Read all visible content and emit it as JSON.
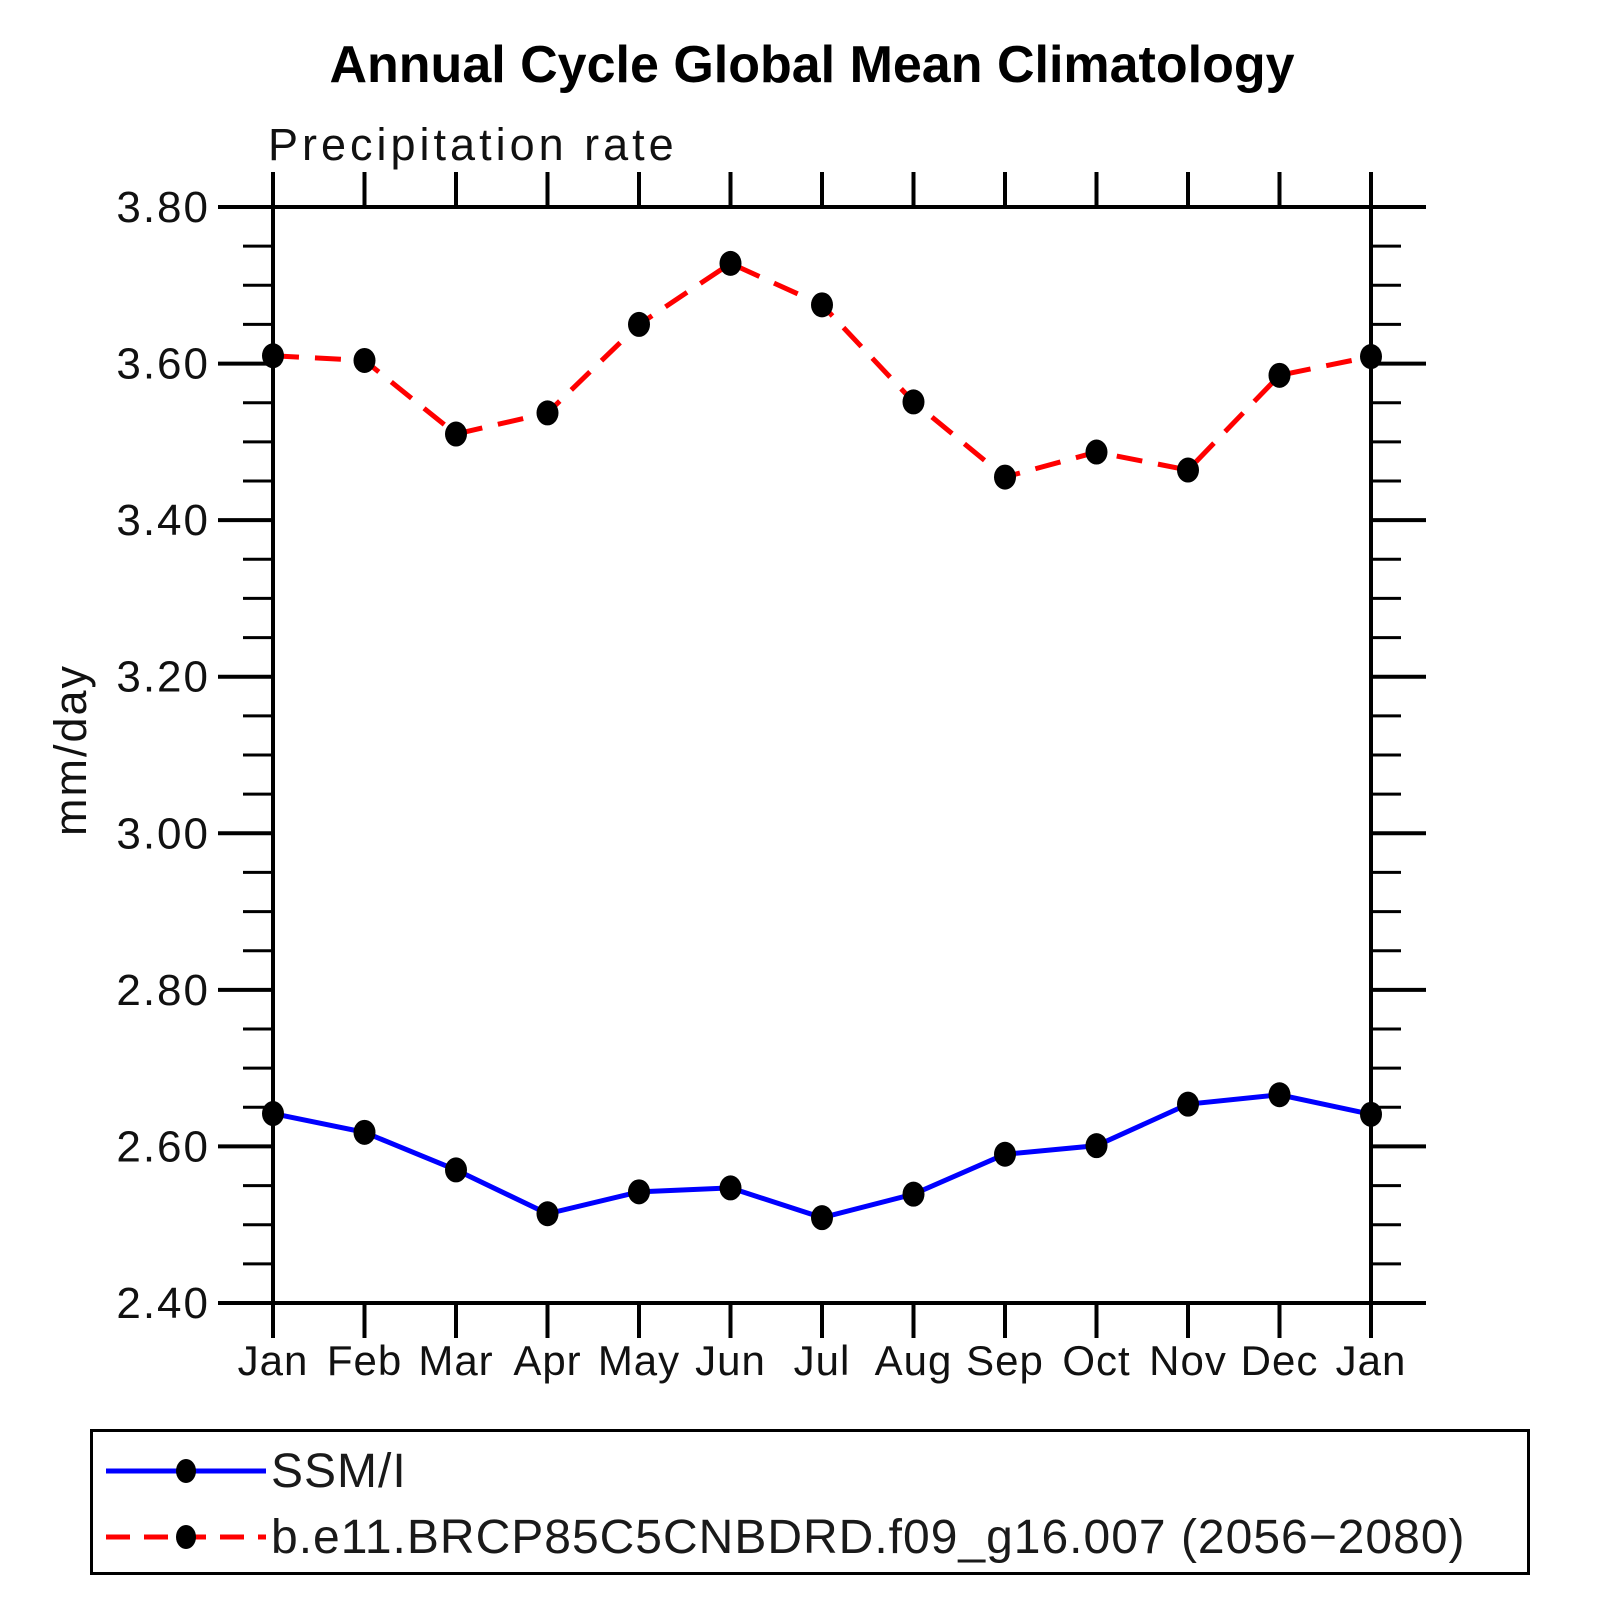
{
  "title": "Annual Cycle Global Mean Climatology",
  "subtitle": "Precipitation rate",
  "ylabel": "mm/day",
  "colors": {
    "background": "#ffffff",
    "axis": "#000000",
    "marker": "#000000",
    "series1": "#0000ff",
    "series2": "#ff0000"
  },
  "chart_data": {
    "type": "line",
    "title": "Annual Cycle Global Mean Climatology",
    "subtitle": "Precipitation rate",
    "ylabel": "mm/day",
    "xlabel": "",
    "grid": false,
    "legend_position": "bottom",
    "ylim": [
      2.4,
      3.8
    ],
    "ytick_step": 0.2,
    "yminor_step": 0.05,
    "ytick_labels": [
      "2.40",
      "2.60",
      "2.80",
      "3.00",
      "3.20",
      "3.40",
      "3.60",
      "3.80"
    ],
    "categories": [
      "Jan",
      "Feb",
      "Mar",
      "Apr",
      "May",
      "Jun",
      "Jul",
      "Aug",
      "Sep",
      "Oct",
      "Nov",
      "Dec",
      "Jan"
    ],
    "series": [
      {
        "name": "SSM/I",
        "color": "#0000ff",
        "line_style": "solid",
        "marker": "black-dot",
        "values": [
          2.642,
          2.618,
          2.57,
          2.514,
          2.542,
          2.547,
          2.509,
          2.539,
          2.59,
          2.601,
          2.654,
          2.666,
          2.641
        ]
      },
      {
        "name": "b.e11.BRCP85C5CNBDRD.f09_g16.007 (2056−2080)",
        "color": "#ff0000",
        "line_style": "dashed",
        "marker": "black-dot",
        "values": [
          3.61,
          3.604,
          3.51,
          3.537,
          3.65,
          3.728,
          3.675,
          3.551,
          3.455,
          3.487,
          3.464,
          3.585,
          3.609
        ]
      }
    ]
  }
}
